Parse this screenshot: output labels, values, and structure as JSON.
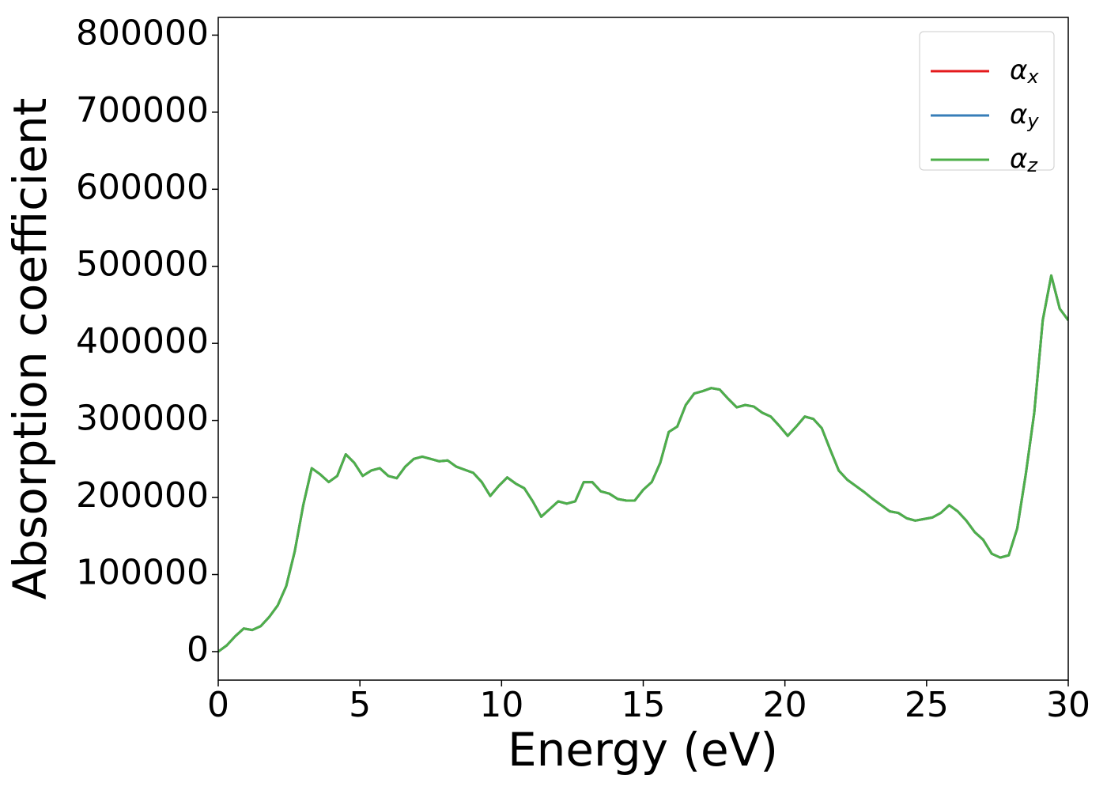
{
  "chart_data": {
    "type": "line",
    "xlabel": "Energy (eV)",
    "ylabel": "Absorption coefficient",
    "x": [
      0,
      0.3,
      0.6,
      0.9,
      1.2,
      1.5,
      1.8,
      2.1,
      2.4,
      2.7,
      3.0,
      3.3,
      3.6,
      3.9,
      4.2,
      4.5,
      4.8,
      5.1,
      5.4,
      5.7,
      6.0,
      6.3,
      6.6,
      6.9,
      7.2,
      7.5,
      7.8,
      8.1,
      8.4,
      8.7,
      9.0,
      9.3,
      9.6,
      9.9,
      10.2,
      10.5,
      10.8,
      11.1,
      11.4,
      11.7,
      12.0,
      12.3,
      12.6,
      12.9,
      13.2,
      13.5,
      13.8,
      14.1,
      14.4,
      14.7,
      15.0,
      15.3,
      15.6,
      15.9,
      16.2,
      16.5,
      16.8,
      17.1,
      17.4,
      17.7,
      18.0,
      18.3,
      18.6,
      18.9,
      19.2,
      19.5,
      19.8,
      20.1,
      20.4,
      20.7,
      21.0,
      21.3,
      21.6,
      21.9,
      22.2,
      22.5,
      22.8,
      23.1,
      23.4,
      23.7,
      24.0,
      24.3,
      24.6,
      24.9,
      25.2,
      25.5,
      25.8,
      26.1,
      26.4,
      26.7,
      27.0,
      27.3,
      27.6,
      27.9,
      28.2,
      28.5,
      28.8,
      29.1,
      29.4,
      29.7,
      30.0
    ],
    "series": [
      {
        "name": "αx",
        "color": "#e41a1c",
        "values": [
          0,
          8000,
          20000,
          30000,
          28000,
          33000,
          45000,
          60000,
          85000,
          130000,
          190000,
          238000,
          230000,
          220000,
          228000,
          256000,
          245000,
          228000,
          235000,
          238000,
          228000,
          225000,
          240000,
          250000,
          253000,
          250000,
          247000,
          248000,
          240000,
          236000,
          232000,
          220000,
          202000,
          215000,
          226000,
          218000,
          212000,
          195000,
          175000,
          185000,
          195000,
          192000,
          195000,
          220000,
          220000,
          208000,
          205000,
          198000,
          196000,
          196000,
          210000,
          220000,
          245000,
          285000,
          292000,
          320000,
          335000,
          338000,
          342000,
          340000,
          328000,
          317000,
          320000,
          318000,
          310000,
          305000,
          293000,
          280000,
          292000,
          305000,
          302000,
          290000,
          262000,
          235000,
          223000,
          215000,
          207000,
          198000,
          190000,
          182000,
          180000,
          173000,
          170000,
          172000,
          174000,
          180000,
          190000,
          182000,
          170000,
          155000,
          145000,
          127000,
          122000,
          125000,
          160000,
          230000,
          310000,
          430000,
          488000,
          445000,
          430000
        ]
      },
      {
        "name": "αy",
        "color": "#377eb8",
        "values": [
          0,
          8000,
          20000,
          30000,
          28000,
          33000,
          45000,
          60000,
          85000,
          130000,
          190000,
          238000,
          230000,
          220000,
          228000,
          256000,
          245000,
          228000,
          235000,
          238000,
          228000,
          225000,
          240000,
          250000,
          253000,
          250000,
          247000,
          248000,
          240000,
          236000,
          232000,
          220000,
          202000,
          215000,
          226000,
          218000,
          212000,
          195000,
          175000,
          185000,
          195000,
          192000,
          195000,
          220000,
          220000,
          208000,
          205000,
          198000,
          196000,
          196000,
          210000,
          220000,
          245000,
          285000,
          292000,
          320000,
          335000,
          338000,
          342000,
          340000,
          328000,
          317000,
          320000,
          318000,
          310000,
          305000,
          293000,
          280000,
          292000,
          305000,
          302000,
          290000,
          262000,
          235000,
          223000,
          215000,
          207000,
          198000,
          190000,
          182000,
          180000,
          173000,
          170000,
          172000,
          174000,
          180000,
          190000,
          182000,
          170000,
          155000,
          145000,
          127000,
          122000,
          125000,
          160000,
          230000,
          310000,
          430000,
          488000,
          445000,
          430000
        ]
      },
      {
        "name": "αz",
        "color": "#4daf4a",
        "values": [
          0,
          8000,
          20000,
          30000,
          28000,
          33000,
          45000,
          60000,
          85000,
          130000,
          190000,
          238000,
          230000,
          220000,
          228000,
          256000,
          245000,
          228000,
          235000,
          238000,
          228000,
          225000,
          240000,
          250000,
          253000,
          250000,
          247000,
          248000,
          240000,
          236000,
          232000,
          220000,
          202000,
          215000,
          226000,
          218000,
          212000,
          195000,
          175000,
          185000,
          195000,
          192000,
          195000,
          220000,
          220000,
          208000,
          205000,
          198000,
          196000,
          196000,
          210000,
          220000,
          245000,
          285000,
          292000,
          320000,
          335000,
          338000,
          342000,
          340000,
          328000,
          317000,
          320000,
          318000,
          310000,
          305000,
          293000,
          280000,
          292000,
          305000,
          302000,
          290000,
          262000,
          235000,
          223000,
          215000,
          207000,
          198000,
          190000,
          182000,
          180000,
          173000,
          170000,
          172000,
          174000,
          180000,
          190000,
          182000,
          170000,
          155000,
          145000,
          127000,
          122000,
          125000,
          160000,
          230000,
          310000,
          430000,
          488000,
          445000,
          430000
        ]
      }
    ],
    "xlim": [
      0,
      30
    ],
    "xticks": [
      0,
      5,
      10,
      15,
      20,
      25,
      30
    ],
    "ylim": [
      -37000,
      823000
    ],
    "yticks": [
      0,
      100000,
      200000,
      300000,
      400000,
      500000,
      600000,
      700000,
      800000
    ],
    "grid": false,
    "legend": "upper right"
  }
}
